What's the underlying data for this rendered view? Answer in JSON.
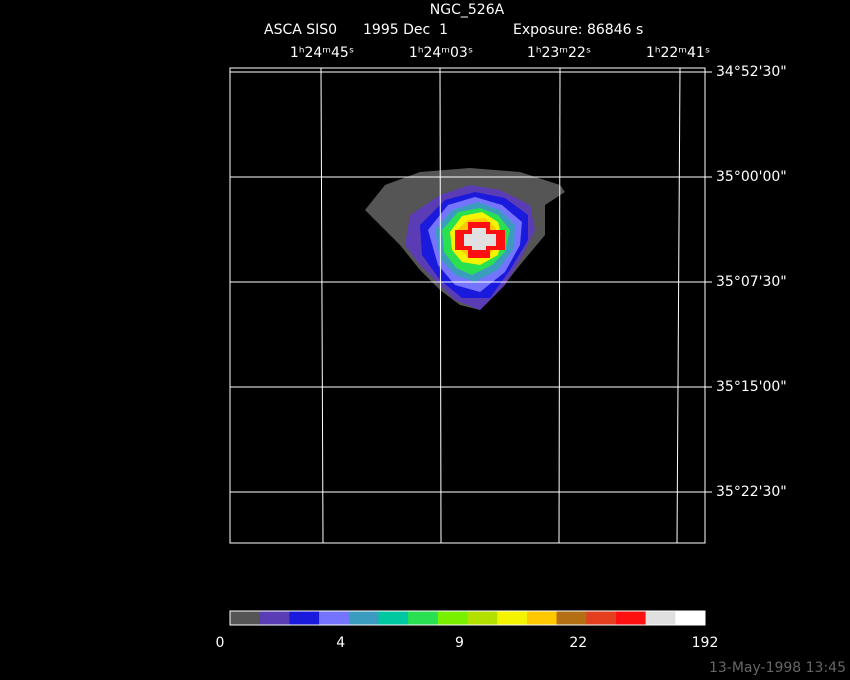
{
  "title": "NGC_526A",
  "subtitle": {
    "instrument": "ASCA SIS0",
    "date": "1995 Dec  1",
    "exposure": "Exposure: 86846 s"
  },
  "ra_labels": [
    "1ʰ24ᵐ45ˢ",
    "1ʰ24ᵐ03ˢ",
    "1ʰ23ᵐ22ˢ",
    "1ʰ22ᵐ41ˢ"
  ],
  "dec_labels": [
    "34°52'30\"",
    "35°00'00\"",
    "35°07'30\"",
    "35°15'00\"",
    "35°22'30\""
  ],
  "colorbar": {
    "colors": [
      "#555555",
      "#5a3cb4",
      "#1a1adc",
      "#7474ff",
      "#3c9cc0",
      "#00c8a0",
      "#28e050",
      "#78f000",
      "#b4e000",
      "#f4f400",
      "#ffc800",
      "#b46e14",
      "#e44020",
      "#ff1010",
      "#e0e0e0",
      "#ffffff"
    ],
    "labels": [
      "0",
      "4",
      "9",
      "22",
      "192"
    ]
  },
  "timestamp": "13-May-1998 13:45"
}
